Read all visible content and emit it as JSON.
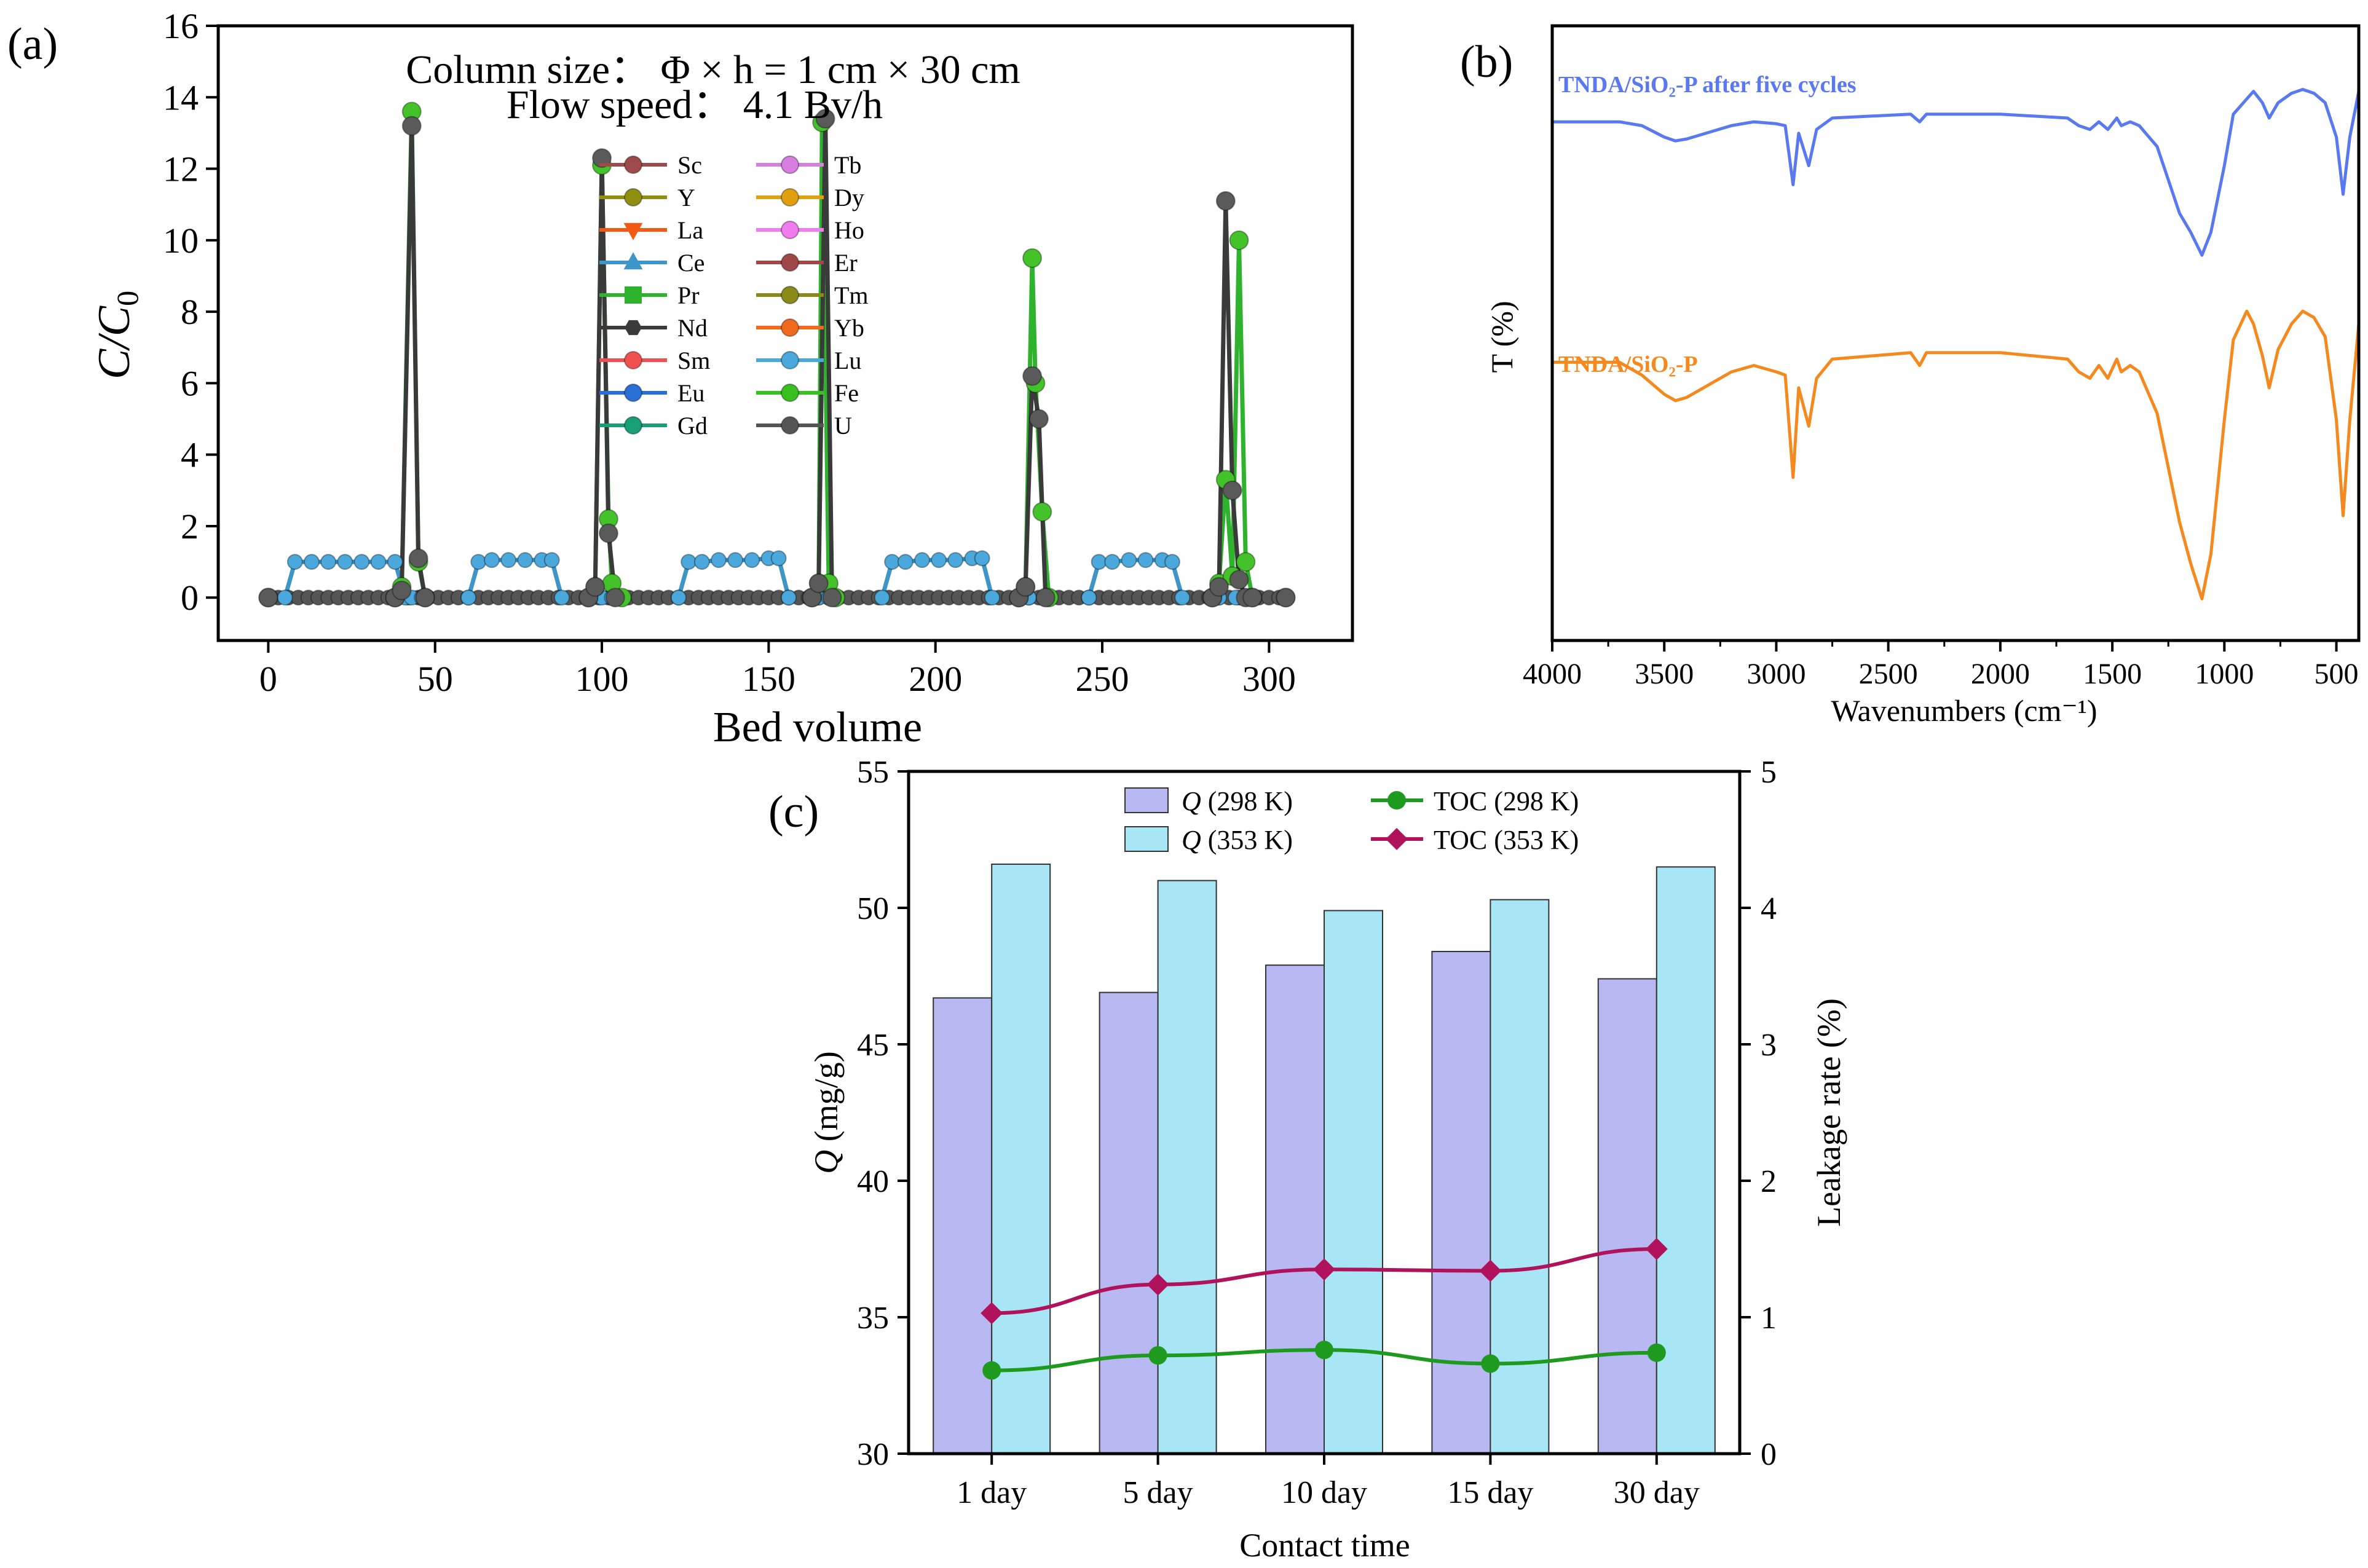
{
  "figure": {
    "colors": {
      "Sc": "#9e4a4a",
      "Y": "#8f8f10",
      "La": "#f05a14",
      "Ce": "#3e96c8",
      "Pr": "#2fb32f",
      "Nd": "#3a3a3a",
      "Sm": "#f05050",
      "Eu": "#2a6fd6",
      "Gd": "#16a074",
      "Tb": "#d77ee0",
      "Dy": "#e0a010",
      "Ho": "#f07cf0",
      "Er": "#a04848",
      "Tm": "#8a8a18",
      "Yb": "#f06a1e",
      "Lu": "#4aa8dc",
      "Fe": "#38c020",
      "U": "#555555",
      "ir_top": "#5a78f0",
      "ir_bottom": "#f5891e",
      "bar_298": "#b8b8f2",
      "bar_353": "#a8e6f6",
      "toc_298": "#1e9a1e",
      "toc_353": "#b0135c"
    }
  },
  "chart_data": [
    {
      "panel": "(a)",
      "type": "line",
      "title": "",
      "xlabel": "Bed volume",
      "ylabel_main": "C",
      "ylabel_sub": "0",
      "xlim": [
        -15,
        325
      ],
      "ylim": [
        -1.2,
        16
      ],
      "xticks": [
        "0",
        "50",
        "100",
        "150",
        "200",
        "250",
        "300"
      ],
      "yticks": [
        "0",
        "2",
        "4",
        "6",
        "8",
        "10",
        "12",
        "14",
        "16"
      ],
      "annotations": {
        "column_size": "Column size： Φ × h = 1 cm × 30 cm",
        "flow_speed": "Flow speed： 4.1 Bv/h"
      },
      "legend": [
        "Sc",
        "Y",
        "La",
        "Ce",
        "Pr",
        "Nd",
        "Sm",
        "Eu",
        "Gd",
        "Tb",
        "Dy",
        "Ho",
        "Er",
        "Tm",
        "Yb",
        "Lu",
        "Fe",
        "U"
      ],
      "legend_markers": {
        "Sc": "circle",
        "Y": "circle",
        "La": "triangle-down",
        "Ce": "triangle-up",
        "Pr": "square",
        "Nd": "hexagon",
        "Sm": "circle",
        "Eu": "circle",
        "Gd": "circle",
        "Tb": "circle",
        "Dy": "circle",
        "Ho": "circle",
        "Er": "circle",
        "Tm": "circle",
        "Yb": "circle",
        "Lu": "circle",
        "Fe": "circle",
        "U": "circle"
      },
      "series": [
        {
          "name": "Lu",
          "x": [
            0,
            5,
            8,
            13,
            18,
            23,
            28,
            33,
            38,
            41,
            43,
            46,
            60,
            63,
            67,
            72,
            77,
            82,
            85,
            88,
            100,
            103,
            123,
            126,
            130,
            135,
            140,
            145,
            150,
            153,
            156,
            165,
            168,
            184,
            187,
            191,
            196,
            201,
            206,
            211,
            214,
            217,
            225,
            228,
            246,
            249,
            253,
            258,
            263,
            268,
            271,
            274,
            285,
            290,
            305
          ],
          "y": [
            0,
            0,
            1.0,
            1.0,
            1.0,
            1.0,
            1.0,
            1.0,
            1.0,
            0,
            0,
            0,
            0,
            1.0,
            1.05,
            1.05,
            1.05,
            1.05,
            1.05,
            0,
            0,
            0,
            0,
            1.0,
            1.0,
            1.05,
            1.05,
            1.05,
            1.1,
            1.1,
            0,
            0,
            0,
            0,
            1.0,
            1.0,
            1.05,
            1.05,
            1.05,
            1.1,
            1.1,
            0,
            0,
            0,
            0,
            1.0,
            1.0,
            1.05,
            1.05,
            1.05,
            1.0,
            0,
            0,
            0,
            0
          ]
        },
        {
          "name": "Fe",
          "x": [
            0,
            38,
            40,
            43,
            45,
            47,
            96,
            98,
            100,
            102,
            103,
            106,
            163,
            165,
            166,
            168,
            170,
            225,
            227,
            229,
            230,
            232,
            234,
            283,
            285,
            287,
            289,
            291,
            293,
            295,
            305
          ],
          "y": [
            0,
            0,
            0.3,
            13.6,
            1.0,
            0,
            0,
            0.3,
            12.1,
            2.2,
            0.4,
            0,
            0,
            0.4,
            13.3,
            0.4,
            0,
            0,
            0.3,
            9.5,
            6.0,
            2.4,
            0,
            0,
            0.4,
            3.3,
            0.6,
            10.0,
            1.0,
            0,
            0
          ]
        },
        {
          "name": "U",
          "x": [
            0,
            38,
            40,
            43,
            45,
            47,
            96,
            98,
            100,
            102,
            104,
            163,
            165,
            167,
            169,
            225,
            227,
            229,
            231,
            233,
            283,
            285,
            287,
            289,
            291,
            293,
            295,
            305
          ],
          "y": [
            0,
            0,
            0.2,
            13.2,
            1.1,
            0,
            0,
            0.3,
            12.3,
            1.8,
            0,
            0,
            0.4,
            13.4,
            0,
            0,
            0.3,
            6.2,
            5.0,
            0,
            0,
            0.3,
            11.1,
            3.0,
            0.5,
            0,
            0,
            0
          ]
        }
      ]
    },
    {
      "panel": "(b)",
      "type": "line",
      "title": "",
      "xlabel": "Wavenumbers (cm⁻¹)",
      "ylabel": "T (%)",
      "xlim": [
        4000,
        400
      ],
      "xticks": [
        "4000",
        "3500",
        "3000",
        "2500",
        "2000",
        "1500",
        "1000",
        "500"
      ],
      "yticks": [],
      "series": [
        {
          "name": "TNDA/SiO₂-P after five cycles",
          "x": [
            4000,
            3700,
            3600,
            3500,
            3450,
            3400,
            3200,
            3100,
            3000,
            2960,
            2925,
            2900,
            2855,
            2820,
            2750,
            2400,
            2360,
            2330,
            2000,
            1700,
            1650,
            1600,
            1560,
            1520,
            1480,
            1460,
            1420,
            1380,
            1300,
            1200,
            1150,
            1100,
            1060,
            1000,
            960,
            900,
            870,
            830,
            800,
            760,
            700,
            650,
            600,
            550,
            500,
            470,
            440,
            400
          ],
          "y": [
            78,
            78,
            76,
            70,
            68,
            69,
            76,
            78,
            77,
            76,
            45,
            72,
            55,
            74,
            80,
            82,
            78,
            82,
            82,
            80,
            76,
            74,
            78,
            74,
            80,
            76,
            78,
            76,
            65,
            30,
            20,
            8,
            20,
            55,
            82,
            90,
            94,
            88,
            80,
            88,
            93,
            95,
            93,
            88,
            70,
            40,
            70,
            94
          ]
        },
        {
          "name": "TNDA/SiO₂-P",
          "x": [
            4000,
            3700,
            3600,
            3500,
            3450,
            3400,
            3200,
            3100,
            3000,
            2960,
            2925,
            2900,
            2855,
            2820,
            2750,
            2400,
            2360,
            2330,
            2000,
            1700,
            1650,
            1600,
            1560,
            1520,
            1480,
            1460,
            1420,
            1380,
            1300,
            1200,
            1150,
            1100,
            1060,
            1000,
            960,
            900,
            870,
            830,
            800,
            760,
            700,
            650,
            600,
            550,
            500,
            470,
            440,
            400
          ],
          "y": [
            78,
            78,
            74,
            68,
            66,
            67,
            75,
            77,
            75,
            74,
            42,
            70,
            58,
            73,
            79,
            81,
            77,
            81,
            81,
            79,
            75,
            73,
            77,
            73,
            79,
            75,
            77,
            75,
            62,
            28,
            15,
            4,
            18,
            60,
            85,
            94,
            90,
            80,
            70,
            82,
            90,
            94,
            92,
            86,
            60,
            30,
            60,
            90
          ]
        }
      ]
    },
    {
      "panel": "(c)",
      "type": "bar",
      "title": "",
      "xlabel": "Contact time",
      "ylabel_left_italic": "Q",
      "ylabel_left_rest": " (mg/g)",
      "ylabel_right": "Leakage rate (%)",
      "ylim_left": [
        30,
        55
      ],
      "ylim_right": [
        0,
        5
      ],
      "yticks_left": [
        "30",
        "35",
        "40",
        "45",
        "50",
        "55"
      ],
      "yticks_right": [
        "0",
        "1",
        "2",
        "3",
        "4",
        "5"
      ],
      "categories": [
        "1 day",
        "5 day",
        "10 day",
        "15 day",
        "30 day"
      ],
      "series": [
        {
          "name": "Q (298 K)",
          "legend_italic": "Q",
          "legend_rest": " (298 K)",
          "axis": "left",
          "values": [
            46.7,
            46.9,
            47.9,
            48.4,
            47.4
          ]
        },
        {
          "name": "Q (353 K)",
          "legend_italic": "Q",
          "legend_rest": " (353 K)",
          "axis": "left",
          "values": [
            51.6,
            51.0,
            49.9,
            50.3,
            51.5
          ]
        },
        {
          "name": "TOC (298 K)",
          "axis": "right",
          "values": [
            0.61,
            0.72,
            0.76,
            0.66,
            0.74
          ]
        },
        {
          "name": "TOC (353 K)",
          "axis": "right",
          "values": [
            1.03,
            1.24,
            1.35,
            1.34,
            1.5
          ]
        }
      ]
    }
  ]
}
